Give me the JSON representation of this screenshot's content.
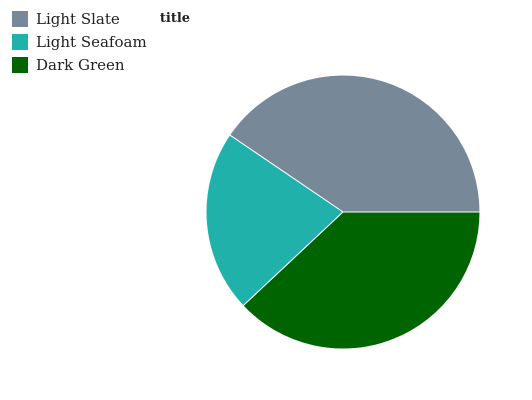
{
  "chart_data": {
    "type": "pie",
    "title": "title",
    "categories": [
      "Light Slate",
      "Light Seafoam",
      "Dark Green"
    ],
    "values": [
      40.5,
      21.5,
      38.0
    ],
    "colors": [
      "#778899",
      "#20B2AA",
      "#006400"
    ],
    "start_angle_deg": 0,
    "direction": "counterclockwise",
    "legend": "top-left"
  }
}
